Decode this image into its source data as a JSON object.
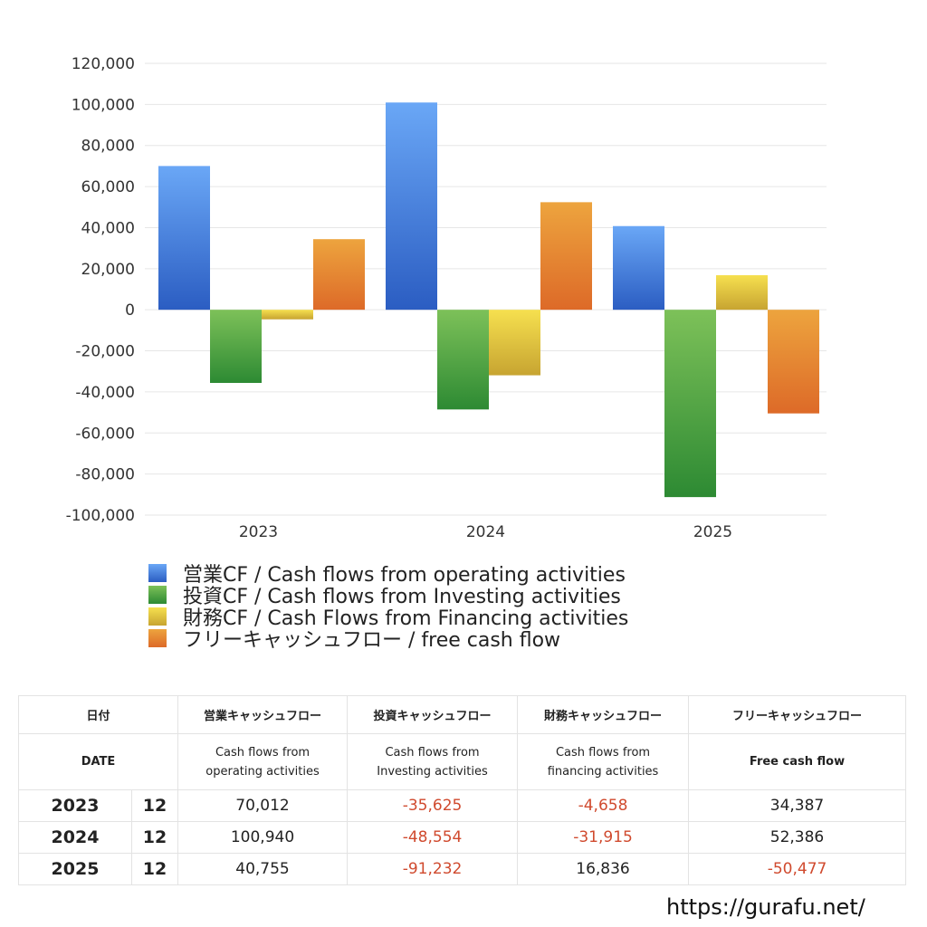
{
  "chart_data": {
    "type": "bar",
    "categories": [
      "2023",
      "2024",
      "2025"
    ],
    "series": [
      {
        "name": "営業CF / Cash flows from operating activities",
        "values": [
          70012,
          100940,
          40755
        ],
        "color_top": "#6aa7f6",
        "color_bottom": "#2b5dc2"
      },
      {
        "name": "投資CF / Cash flows from Investing activities",
        "values": [
          -35625,
          -48554,
          -91232
        ],
        "color_top": "#7dc159",
        "color_bottom": "#2d8a33"
      },
      {
        "name": "財務CF / Cash Flows from Financing activities",
        "values": [
          -4658,
          -31915,
          16836
        ],
        "color_top": "#f6e04f",
        "color_bottom": "#c7a431"
      },
      {
        "name": "フリーキャッシュフロー / free cash flow",
        "values": [
          34387,
          52386,
          -50477
        ],
        "color_top": "#eda43e",
        "color_bottom": "#dd6a28"
      }
    ],
    "y_ticks": [
      "120,000",
      "100,000",
      "80,000",
      "60,000",
      "40,000",
      "20,000",
      "0",
      "-20,000",
      "-40,000",
      "-60,000",
      "-80,000",
      "-100,000"
    ],
    "ylim": [
      -100000,
      120000
    ],
    "grid": true,
    "legend_position": "bottom-left"
  },
  "table": {
    "header_jp": [
      "日付",
      "営業キャッシュフロー",
      "投資キャッシュフロー",
      "財務キャッシュフロー",
      "フリーキャッシュフロー"
    ],
    "header_en": {
      "date": "DATE",
      "operating": [
        "Cash flows from",
        "operating activities"
      ],
      "investing": [
        "Cash flows from",
        "Investing activities"
      ],
      "financing": [
        "Cash flows from",
        "financing activities"
      ],
      "free": "Free cash flow"
    },
    "rows": [
      {
        "year": "2023",
        "month": "12",
        "operating": "70,012",
        "investing": "-35,625",
        "financing": "-4,658",
        "free": "34,387"
      },
      {
        "year": "2024",
        "month": "12",
        "operating": "100,940",
        "investing": "-48,554",
        "financing": "-31,915",
        "free": "52,386"
      },
      {
        "year": "2025",
        "month": "12",
        "operating": "40,755",
        "investing": "-91,232",
        "financing": "16,836",
        "free": "-50,477"
      }
    ],
    "negative_color": "#d04a2e"
  },
  "footer": {
    "url": "https://gurafu.net/"
  }
}
